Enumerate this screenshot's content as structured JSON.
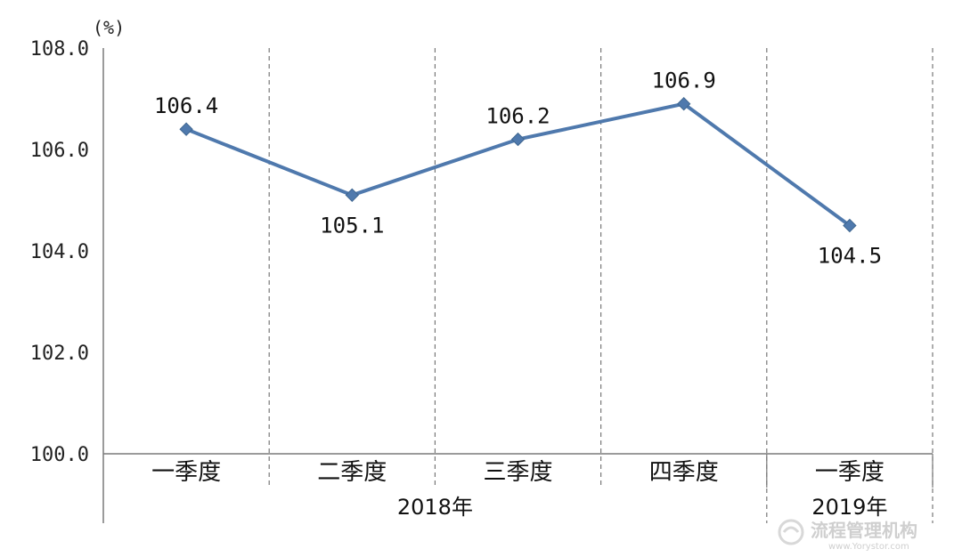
{
  "chart_data": {
    "type": "line",
    "unit": "(%)",
    "categories": [
      "一季度",
      "二季度",
      "三季度",
      "四季度",
      "一季度"
    ],
    "groups": [
      {
        "label": "2018年",
        "span": [
          0,
          3
        ]
      },
      {
        "label": "2019年",
        "span": [
          4,
          4
        ]
      }
    ],
    "values": [
      106.4,
      105.1,
      106.2,
      106.9,
      104.5
    ],
    "data_labels": [
      "106.4",
      "105.1",
      "106.2",
      "106.9",
      "104.5"
    ],
    "yticks": [
      "100.0",
      "102.0",
      "104.0",
      "106.0",
      "108.0"
    ],
    "ylim": [
      100,
      108
    ],
    "line_color": "#4f79ad",
    "grid": "vertical dashed separators"
  },
  "watermark": {
    "text": "流程管理机构",
    "url": "www.Yorystor.com"
  }
}
